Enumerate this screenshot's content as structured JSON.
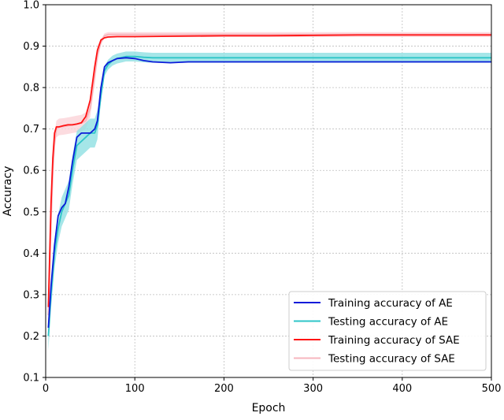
{
  "colors": {
    "train_ae": "#0b1bd9",
    "test_ae": "#2ec5c8",
    "train_sae": "#ff1212",
    "test_sae": "#f7b6be",
    "test_ae_band": "#8fe0e2",
    "test_sae_band": "#fbd3d8",
    "grid": "#bdbdbd",
    "axis": "#000000"
  },
  "chart_data": {
    "type": "line",
    "title": "",
    "xlabel": "Epoch",
    "ylabel": "Accuracy",
    "xlim": [
      0,
      500
    ],
    "ylim": [
      0.1,
      1.0
    ],
    "xticks": [
      0,
      100,
      200,
      300,
      400,
      500
    ],
    "yticks": [
      0.1,
      0.2,
      0.3,
      0.4,
      0.5,
      0.6,
      0.7,
      0.8,
      0.9,
      1.0
    ],
    "xtick_labels": [
      "0",
      "100",
      "200",
      "300",
      "400",
      "500"
    ],
    "ytick_labels": [
      "0.1",
      "0.2",
      "0.3",
      "0.4",
      "0.5",
      "0.6",
      "0.7",
      "0.8",
      "0.9",
      "1.0"
    ],
    "grid": true,
    "legend_position": "bottom-right",
    "series": [
      {
        "name": "Training accuracy of AE",
        "color_key": "train_ae",
        "x": [
          3,
          6,
          10,
          14,
          18,
          22,
          26,
          30,
          35,
          40,
          45,
          50,
          55,
          58,
          62,
          66,
          70,
          75,
          80,
          90,
          100,
          110,
          120,
          140,
          160,
          180,
          200,
          250,
          300,
          350,
          400,
          450,
          500
        ],
        "y": [
          0.22,
          0.32,
          0.42,
          0.49,
          0.51,
          0.52,
          0.56,
          0.62,
          0.68,
          0.69,
          0.69,
          0.69,
          0.7,
          0.72,
          0.8,
          0.85,
          0.86,
          0.865,
          0.87,
          0.872,
          0.87,
          0.865,
          0.862,
          0.86,
          0.862,
          0.862,
          0.862,
          0.862,
          0.862,
          0.862,
          0.862,
          0.862,
          0.862
        ]
      },
      {
        "name": "Testing accuracy of AE",
        "color_key": "test_ae",
        "x": [
          3,
          6,
          10,
          14,
          18,
          22,
          26,
          30,
          35,
          40,
          45,
          50,
          55,
          58,
          62,
          66,
          70,
          75,
          80,
          90,
          100,
          110,
          120,
          140,
          160,
          180,
          200,
          250,
          300,
          350,
          400,
          450,
          500
        ],
        "y": [
          0.2,
          0.3,
          0.4,
          0.46,
          0.5,
          0.52,
          0.54,
          0.6,
          0.66,
          0.67,
          0.68,
          0.69,
          0.69,
          0.71,
          0.78,
          0.84,
          0.855,
          0.865,
          0.87,
          0.875,
          0.875,
          0.873,
          0.872,
          0.872,
          0.872,
          0.872,
          0.872,
          0.872,
          0.872,
          0.872,
          0.872,
          0.872,
          0.872
        ]
      },
      {
        "name": "Training accuracy of SAE",
        "color_key": "train_sae",
        "x": [
          3,
          6,
          8,
          10,
          12,
          15,
          20,
          25,
          30,
          35,
          40,
          45,
          50,
          55,
          58,
          62,
          66,
          70,
          80,
          100,
          150,
          200,
          250,
          300,
          350,
          400,
          450,
          500
        ],
        "y": [
          0.27,
          0.52,
          0.63,
          0.69,
          0.705,
          0.705,
          0.708,
          0.71,
          0.71,
          0.712,
          0.715,
          0.73,
          0.77,
          0.85,
          0.89,
          0.915,
          0.92,
          0.922,
          0.923,
          0.923,
          0.924,
          0.925,
          0.925,
          0.926,
          0.927,
          0.927,
          0.927,
          0.927
        ]
      },
      {
        "name": "Testing accuracy of SAE",
        "color_key": "test_sae",
        "x": [
          3,
          6,
          8,
          10,
          12,
          15,
          20,
          25,
          30,
          35,
          40,
          45,
          50,
          55,
          58,
          62,
          66,
          70,
          80,
          100,
          150,
          200,
          250,
          300,
          350,
          400,
          450,
          500
        ],
        "y": [
          0.25,
          0.48,
          0.6,
          0.67,
          0.7,
          0.705,
          0.706,
          0.708,
          0.71,
          0.712,
          0.714,
          0.72,
          0.75,
          0.83,
          0.88,
          0.91,
          0.925,
          0.928,
          0.928,
          0.928,
          0.928,
          0.928,
          0.928,
          0.928,
          0.928,
          0.928,
          0.928,
          0.928
        ]
      }
    ]
  }
}
